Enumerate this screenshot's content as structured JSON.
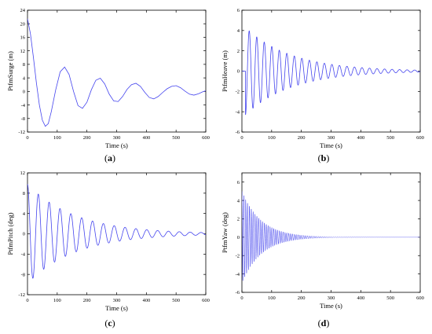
{
  "chart_data": [
    {
      "type": "line",
      "panel_label": "a",
      "xlabel": "Time (s)",
      "ylabel": "PtfmSurge (m)",
      "xlim": [
        0,
        600
      ],
      "ylim": [
        -12,
        24
      ],
      "xticks": [
        0,
        100,
        200,
        300,
        400,
        500,
        600
      ],
      "yticks": [
        -12,
        -8,
        -4,
        0,
        4,
        8,
        12,
        16,
        20,
        24
      ],
      "grid": false,
      "legend": "none",
      "line_color": "#4444ee",
      "series": [
        {
          "x": [
            0,
            10,
            20,
            30,
            40,
            50,
            60,
            70,
            80,
            95,
            110,
            125,
            140,
            155,
            170,
            185,
            200,
            215,
            230,
            245,
            260,
            275,
            290,
            305,
            320,
            335,
            350,
            365,
            380,
            395,
            410,
            425,
            440,
            455,
            470,
            485,
            500,
            515,
            530,
            545,
            560,
            575,
            590,
            600
          ],
          "y": [
            21.5,
            17,
            10,
            2.5,
            -4,
            -8.5,
            -10.3,
            -9.5,
            -6,
            0.5,
            5.8,
            7.2,
            5,
            0,
            -4.2,
            -5,
            -3.2,
            0.5,
            3.3,
            3.9,
            2.2,
            -0.8,
            -2.8,
            -3,
            -1.5,
            0.6,
            2,
            2.4,
            1.5,
            -0.3,
            -1.8,
            -2.2,
            -1.5,
            -0.3,
            0.8,
            1.5,
            1.7,
            1.1,
            0.1,
            -0.8,
            -1.1,
            -0.7,
            -0.1,
            0.2
          ]
        }
      ]
    },
    {
      "type": "line",
      "panel_label": "b",
      "xlabel": "Time (s)",
      "ylabel": "PtfmHeave (m)",
      "xlim": [
        0,
        600
      ],
      "ylim": [
        -6,
        6
      ],
      "xticks": [
        0,
        100,
        200,
        300,
        400,
        500,
        600
      ],
      "yticks": [
        -6,
        -4,
        -2,
        0,
        2,
        4,
        6
      ],
      "grid": false,
      "legend": "none",
      "line_color": "#4444ee",
      "oscillation": {
        "period": 25.3,
        "amplitude": 4.3,
        "decay": 0.00645,
        "phase_start": -1.5708,
        "offset": 0,
        "onset": 12
      }
    },
    {
      "type": "line",
      "panel_label": "c",
      "xlabel": "Time (s)",
      "ylabel": "PtfmPitch (deg)",
      "xlim": [
        0,
        600
      ],
      "ylim": [
        -12,
        12
      ],
      "xticks": [
        0,
        100,
        200,
        300,
        400,
        500,
        600
      ],
      "yticks": [
        -12,
        -8,
        -4,
        0,
        4,
        8,
        12
      ],
      "grid": false,
      "legend": "none",
      "line_color": "#4444ee",
      "oscillation": {
        "period": 36.5,
        "amplitude": 9.8,
        "decay": 0.0062,
        "phase_start": 1.5708,
        "offset": 0,
        "onset": 0
      }
    },
    {
      "type": "line",
      "panel_label": "d",
      "xlabel": "Time (s)",
      "ylabel": "PtfmYaw (deg)",
      "xlim": [
        0,
        600
      ],
      "ylim": [
        -6,
        7
      ],
      "xticks": [
        0,
        100,
        200,
        300,
        400,
        500,
        600
      ],
      "yticks": [
        -6,
        -4,
        -2,
        0,
        2,
        4,
        6
      ],
      "grid": false,
      "legend": "none",
      "line_color": "#4444ee",
      "oscillation": {
        "period": 6.3,
        "amplitude": 5.0,
        "decay": 0.0155,
        "phase_start": 1.5708,
        "offset": 0,
        "onset": 0
      }
    }
  ]
}
